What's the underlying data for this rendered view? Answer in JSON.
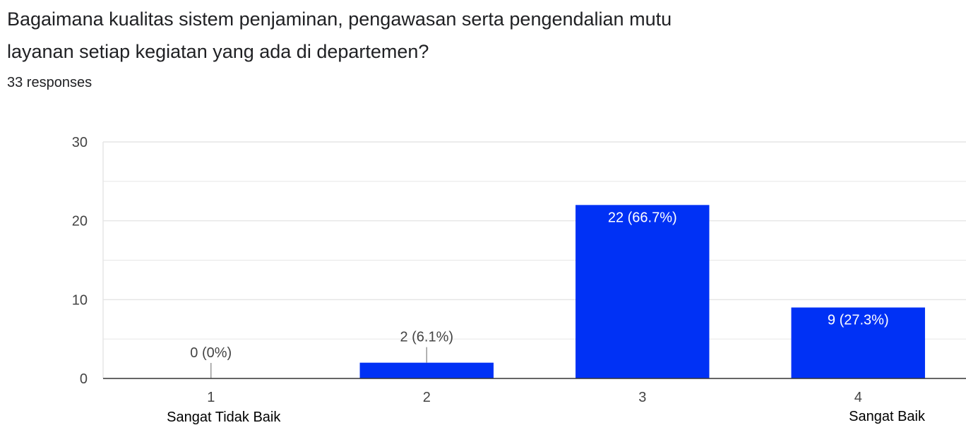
{
  "question": {
    "line1": "Bagaimana kualitas sistem penjaminan, pengawasan serta pengendalian mutu",
    "line2": "layanan setiap kegiatan yang ada di departemen?"
  },
  "response_count": "33 responses",
  "colors": {
    "bar": "#0031f5",
    "axis": "#333333",
    "grid": "#e6e6e6",
    "text": "#202124"
  },
  "chart_data": {
    "type": "bar",
    "categories": [
      "1",
      "2",
      "3",
      "4"
    ],
    "values": [
      0,
      2,
      22,
      9
    ],
    "data_labels": [
      "0 (0%)",
      "2 (6.1%)",
      "22 (66.7%)",
      "9 (27.3%)"
    ],
    "scale_labels": {
      "min": "Sangat Tidak Baik",
      "max": "Sangat Baik"
    },
    "y_ticks": [
      0,
      10,
      20,
      30
    ],
    "ylim": [
      0,
      30
    ],
    "grid": true
  }
}
